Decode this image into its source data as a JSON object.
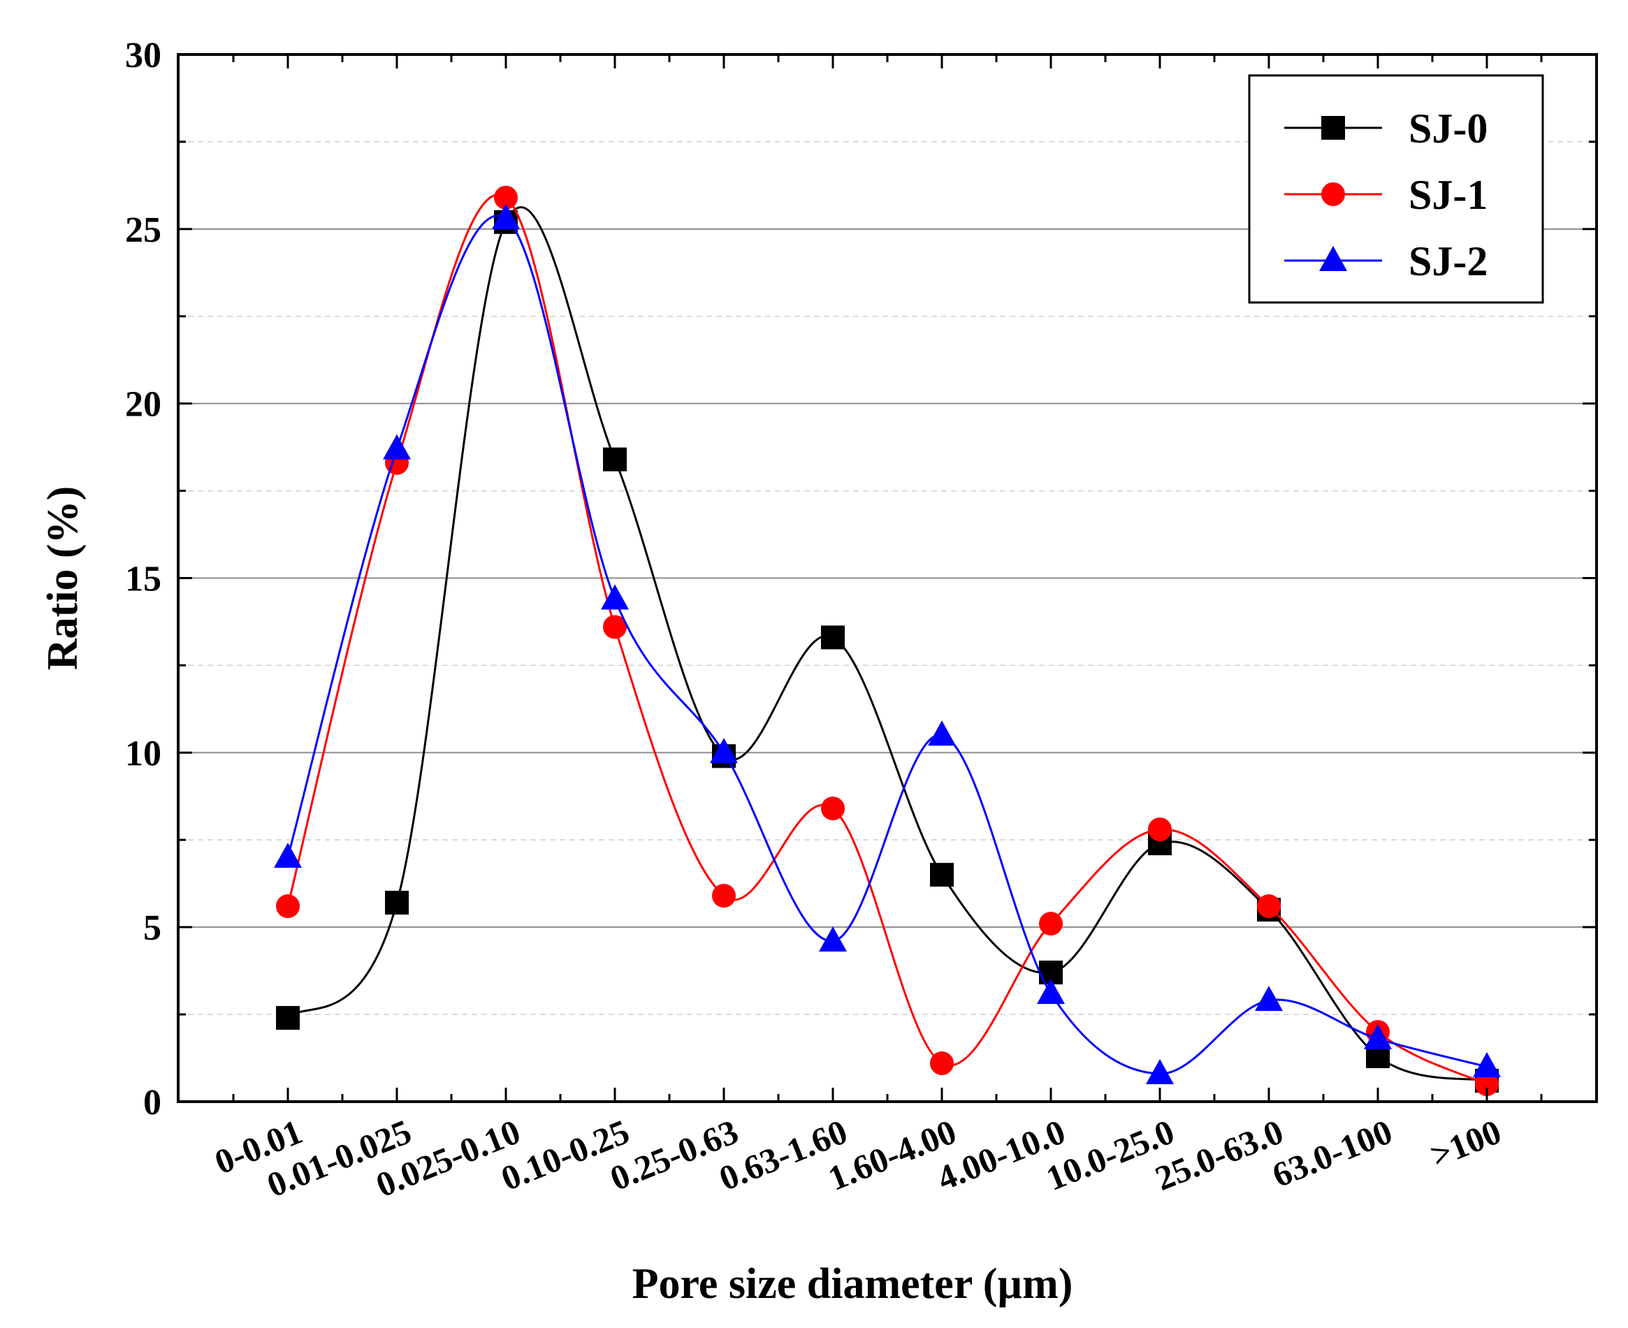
{
  "chart_data": {
    "type": "line",
    "title": "",
    "xlabel": "Pore size diameter (µm)",
    "ylabel": "Ratio (%)",
    "ylim": [
      0,
      30
    ],
    "yticks": [
      0,
      5,
      10,
      15,
      20,
      25,
      30
    ],
    "categories": [
      "0-0.01",
      "0.01-0.025",
      "0.025-0.10",
      "0.10-0.25",
      "0.25-0.63",
      "0.63-1.60",
      "1.60-4.00",
      "4.00-10.0",
      "10.0-25.0",
      "25.0-63.0",
      "63.0-100",
      ">100"
    ],
    "series": [
      {
        "name": "SJ-0",
        "color": "#000000",
        "marker": "square",
        "values": [
          2.4,
          5.7,
          25.2,
          18.4,
          9.9,
          13.3,
          6.5,
          3.7,
          7.4,
          5.5,
          1.3,
          0.6
        ]
      },
      {
        "name": "SJ-1",
        "color": "#ff0000",
        "marker": "circle",
        "values": [
          5.6,
          18.3,
          25.9,
          13.6,
          5.9,
          8.4,
          1.1,
          5.1,
          7.8,
          5.6,
          2.0,
          0.5
        ]
      },
      {
        "name": "SJ-2",
        "color": "#0000ff",
        "marker": "triangle",
        "values": [
          7.0,
          18.7,
          25.3,
          14.4,
          10.0,
          4.6,
          10.5,
          3.1,
          0.8,
          2.9,
          1.8,
          1.0
        ]
      }
    ],
    "grid": {
      "major_y": true,
      "minor_y_dashed": true
    },
    "legend_position": "top-right"
  }
}
